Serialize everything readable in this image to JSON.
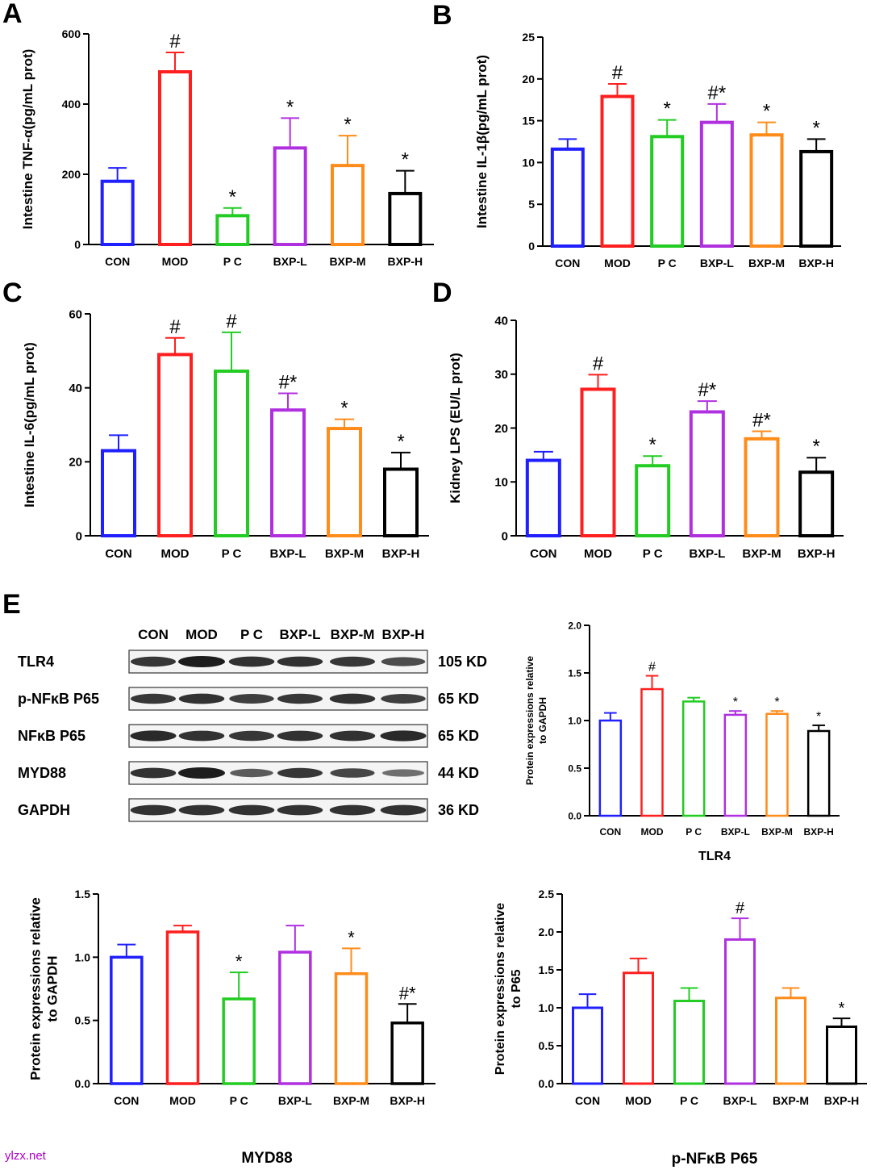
{
  "panel_letters": [
    "A",
    "B",
    "C",
    "D",
    "E"
  ],
  "colors": [
    "#1f1fff",
    "#ff1f1f",
    "#22cc22",
    "#b030e0",
    "#ff8c1a",
    "#000000"
  ],
  "chart_data": [
    {
      "id": "A",
      "type": "bar",
      "categories": [
        "CON",
        "MOD",
        "P C",
        "BXP-L",
        "BXP-M",
        "BXP-H"
      ],
      "values": [
        180,
        492,
        82,
        275,
        225,
        145
      ],
      "errors": [
        38,
        55,
        22,
        85,
        85,
        65
      ],
      "annotations": [
        "",
        "#",
        "*",
        "*",
        "*",
        "*"
      ],
      "ylabel": "Intestine TNF-α(pg/mL prot)",
      "xlabel": "",
      "ylim": [
        0,
        600
      ],
      "yticks": [
        "0",
        "200",
        "400",
        "600"
      ]
    },
    {
      "id": "B",
      "type": "bar",
      "categories": [
        "CON",
        "MOD",
        "P C",
        "BXP-L",
        "BXP-M",
        "BXP-H"
      ],
      "values": [
        11.6,
        17.9,
        13.1,
        14.8,
        13.3,
        11.3
      ],
      "errors": [
        1.2,
        1.5,
        2.0,
        2.2,
        1.5,
        1.5
      ],
      "annotations": [
        "",
        "#",
        "*",
        "#*",
        "*",
        "*"
      ],
      "ylabel": "Intestine IL-1β(pg/mL prot)",
      "xlabel": "",
      "ylim": [
        0,
        25
      ],
      "yticks": [
        "0",
        "5",
        "10",
        "15",
        "20",
        "25"
      ]
    },
    {
      "id": "C",
      "type": "bar",
      "categories": [
        "CON",
        "MOD",
        "P C",
        "BXP-L",
        "BXP-M",
        "BXP-H"
      ],
      "values": [
        23,
        49,
        44.5,
        34,
        29,
        18
      ],
      "errors": [
        4.2,
        4.5,
        10.5,
        4.5,
        2.5,
        4.5
      ],
      "annotations": [
        "",
        "#",
        "#",
        "#*",
        "*",
        "*"
      ],
      "ylabel": "Intestine IL-6(pg/mL prot)",
      "xlabel": "",
      "ylim": [
        0,
        60
      ],
      "yticks": [
        "0",
        "20",
        "40",
        "60"
      ]
    },
    {
      "id": "D",
      "type": "bar",
      "categories": [
        "CON",
        "MOD",
        "P C",
        "BXP-L",
        "BXP-M",
        "BXP-H"
      ],
      "values": [
        14,
        27.2,
        13,
        23,
        18,
        11.8
      ],
      "errors": [
        1.6,
        2.7,
        1.8,
        2.0,
        1.4,
        2.7
      ],
      "annotations": [
        "",
        "#",
        "*",
        "#*",
        "#*",
        "*"
      ],
      "ylabel": "Kidney  LPS (EU/L prot)",
      "xlabel": "",
      "ylim": [
        0,
        40
      ],
      "yticks": [
        "0",
        "10",
        "20",
        "30",
        "40"
      ]
    },
    {
      "id": "TLR4",
      "type": "bar",
      "categories": [
        "CON",
        "MOD",
        "P C",
        "BXP-L",
        "BXP-M",
        "BXP-H"
      ],
      "values": [
        1.0,
        1.33,
        1.2,
        1.06,
        1.07,
        0.89
      ],
      "errors": [
        0.08,
        0.14,
        0.04,
        0.04,
        0.03,
        0.06
      ],
      "annotations": [
        "",
        "#",
        "",
        "*",
        "*",
        "*"
      ],
      "ylabel": "Protein expressions relative to GAPDH",
      "xlabel": "TLR4",
      "ylim": [
        0,
        2.0
      ],
      "yticks": [
        "0.0",
        "0.5",
        "1.0",
        "1.5",
        "2.0"
      ]
    },
    {
      "id": "MYD88",
      "type": "bar",
      "categories": [
        "CON",
        "MOD",
        "P C",
        "BXP-L",
        "BXP-M",
        "BXP-H"
      ],
      "values": [
        1.0,
        1.2,
        0.67,
        1.04,
        0.87,
        0.48
      ],
      "errors": [
        0.1,
        0.05,
        0.21,
        0.21,
        0.2,
        0.15
      ],
      "annotations": [
        "",
        "",
        "*",
        "",
        "*",
        "#*"
      ],
      "ylabel": "Protein expressions relative to GAPDH",
      "xlabel": "MYD88",
      "ylim": [
        0,
        1.5
      ],
      "yticks": [
        "0.0",
        "0.5",
        "1.0",
        "1.5"
      ]
    },
    {
      "id": "p-NFkB P65",
      "type": "bar",
      "categories": [
        "CON",
        "MOD",
        "P C",
        "BXP-L",
        "BXP-M",
        "BXP-H"
      ],
      "values": [
        1.0,
        1.46,
        1.09,
        1.9,
        1.13,
        0.75
      ],
      "errors": [
        0.18,
        0.19,
        0.17,
        0.28,
        0.13,
        0.11
      ],
      "annotations": [
        "",
        "",
        "",
        "#",
        "",
        "*"
      ],
      "ylabel": "Protein expressions relative to P65",
      "xlabel": "p-NFκB P65",
      "ylim": [
        0,
        2.5
      ],
      "yticks": [
        "0.0",
        "0.5",
        "1.0",
        "1.5",
        "2.0",
        "2.5"
      ]
    }
  ],
  "blot": {
    "lanes": [
      "CON",
      "MOD",
      "P C",
      "BXP-L",
      "BXP-M",
      "BXP-H"
    ],
    "rows": [
      {
        "label": "TLR4",
        "size": "105 KD",
        "intensity": [
          0.8,
          1.0,
          0.85,
          0.85,
          0.8,
          0.65
        ]
      },
      {
        "label": "p-NFκB P65",
        "size": "65 KD",
        "intensity": [
          0.8,
          0.85,
          0.75,
          0.8,
          0.85,
          0.75
        ]
      },
      {
        "label": "NFκB P65",
        "size": "65 KD",
        "intensity": [
          0.9,
          0.85,
          0.8,
          0.85,
          0.85,
          0.9
        ]
      },
      {
        "label": "MYD88",
        "size": "44 KD",
        "intensity": [
          0.85,
          1.0,
          0.55,
          0.8,
          0.7,
          0.4
        ]
      },
      {
        "label": "GAPDH",
        "size": "36 KD",
        "intensity": [
          0.85,
          0.85,
          0.85,
          0.85,
          0.85,
          0.85
        ]
      }
    ]
  },
  "watermark": "ylzx.net"
}
